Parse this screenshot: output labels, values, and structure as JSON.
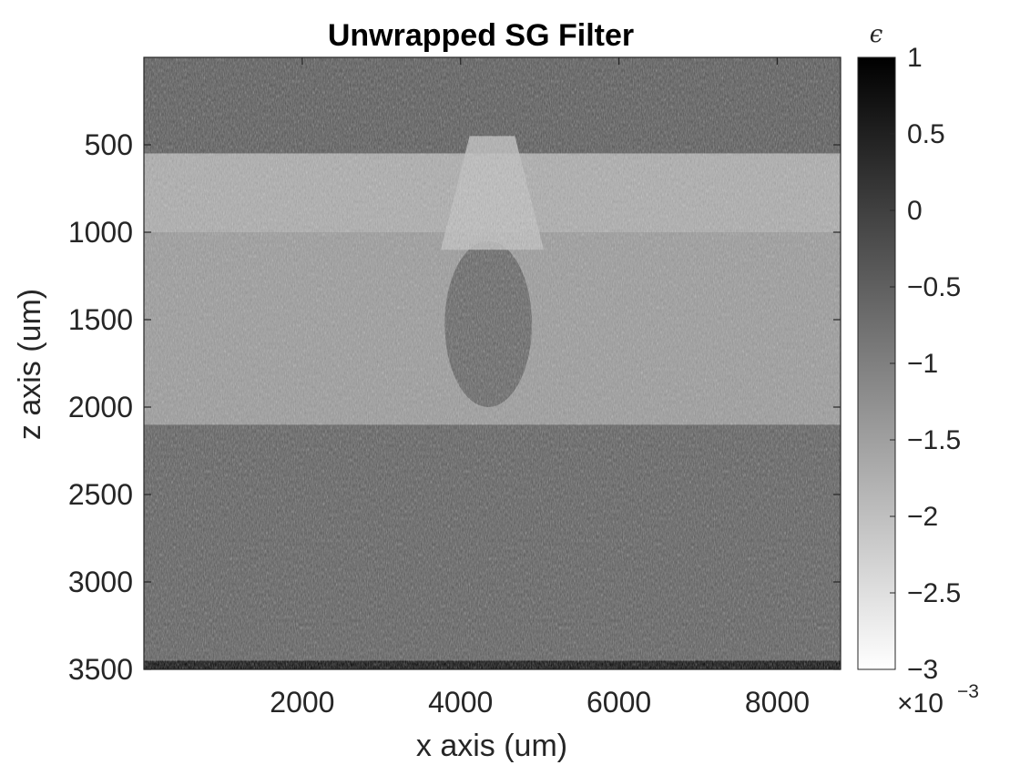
{
  "chart_data": {
    "type": "heatmap",
    "title": "Unwrapped SG Filter",
    "xlabel": "x axis (um)",
    "ylabel": "z axis (um)",
    "xlim": [
      0,
      8800
    ],
    "ylim": [
      0,
      3500
    ],
    "y_reversed": true,
    "xticks": [
      2000,
      4000,
      6000,
      8000
    ],
    "xtick_labels": [
      "2000",
      "4000",
      "6000",
      "8000"
    ],
    "yticks": [
      500,
      1000,
      1500,
      2000,
      2500,
      3000,
      3500
    ],
    "ytick_labels": [
      "500",
      "1000",
      "1500",
      "2000",
      "2500",
      "3000",
      "3500"
    ],
    "colormap": "gray",
    "colorbar": {
      "label": "ϵ",
      "range": [
        -3,
        1
      ],
      "ticks": [
        1,
        0.5,
        0,
        -0.5,
        -1,
        -1.5,
        -2,
        -2.5,
        -3
      ],
      "tick_labels": [
        "1",
        "0.5",
        "0",
        "−0.5",
        "−1",
        "−1.5",
        "−2",
        "−2.5",
        "−3"
      ],
      "exponent_label": "×10",
      "exponent": "−3"
    },
    "regions": [
      {
        "name": "top background",
        "z": [
          0,
          550
        ],
        "approx_value": -0.3
      },
      {
        "name": "upper bright band",
        "z": [
          550,
          1000
        ],
        "approx_value": -1.7
      },
      {
        "name": "middle band",
        "z": [
          1000,
          2100
        ],
        "approx_value": -1.4
      },
      {
        "name": "lower background",
        "z": [
          2100,
          3450
        ],
        "approx_value": -0.4
      },
      {
        "name": "dark inclusion",
        "x": [
          3800,
          4900
        ],
        "z": [
          1050,
          2000
        ],
        "approx_value": -0.5
      },
      {
        "name": "bright cone above inclusion",
        "x": [
          3750,
          5050
        ],
        "z": [
          450,
          1100
        ],
        "approx_value": -2.0
      },
      {
        "name": "bottom dark edge",
        "z": [
          3450,
          3500
        ],
        "approx_value": 1.0
      }
    ]
  }
}
